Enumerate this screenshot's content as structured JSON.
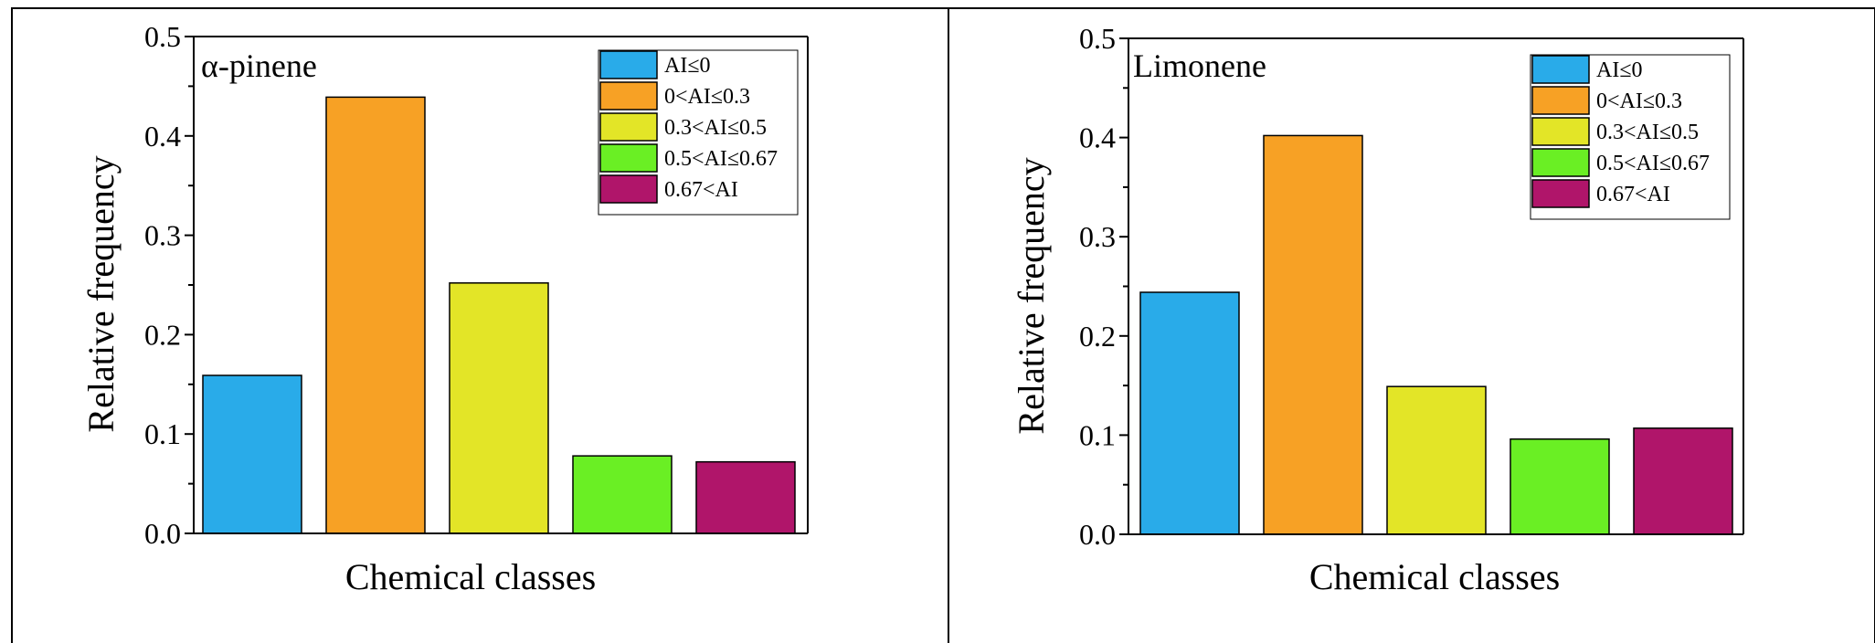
{
  "chart_data": [
    {
      "type": "bar",
      "title": "α-pinene",
      "xlabel": "Chemical classes",
      "ylabel": "Relative frequency",
      "ylim": [
        0,
        0.5
      ],
      "yticks": [
        "0.0",
        "0.1",
        "0.2",
        "0.3",
        "0.4",
        "0.5"
      ],
      "grid": false,
      "legend_position": "top-right",
      "series": [
        {
          "name": "AI≤0",
          "value": 0.159,
          "color": "#29abe9"
        },
        {
          "name": "0<AI≤0.3",
          "value": 0.439,
          "color": "#f7a125"
        },
        {
          "name": "0.3<AI≤0.5",
          "value": 0.252,
          "color": "#e3e527"
        },
        {
          "name": "0.5<AI≤0.67",
          "value": 0.078,
          "color": "#6aef24"
        },
        {
          "name": "0.67<AI",
          "value": 0.072,
          "color": "#b0156a"
        }
      ]
    },
    {
      "type": "bar",
      "title": "Limonene",
      "xlabel": "Chemical classes",
      "ylabel": "Relative frequency",
      "ylim": [
        0,
        0.5
      ],
      "yticks": [
        "0.0",
        "0.1",
        "0.2",
        "0.3",
        "0.4",
        "0.5"
      ],
      "grid": false,
      "legend_position": "top-right",
      "series": [
        {
          "name": "AI≤0",
          "value": 0.244,
          "color": "#29abe9"
        },
        {
          "name": "0<AI≤0.3",
          "value": 0.402,
          "color": "#f7a125"
        },
        {
          "name": "0.3<AI≤0.5",
          "value": 0.149,
          "color": "#e3e527"
        },
        {
          "name": "0.5<AI≤0.67",
          "value": 0.096,
          "color": "#6aef24"
        },
        {
          "name": "0.67<AI",
          "value": 0.107,
          "color": "#b0156a"
        }
      ]
    }
  ]
}
